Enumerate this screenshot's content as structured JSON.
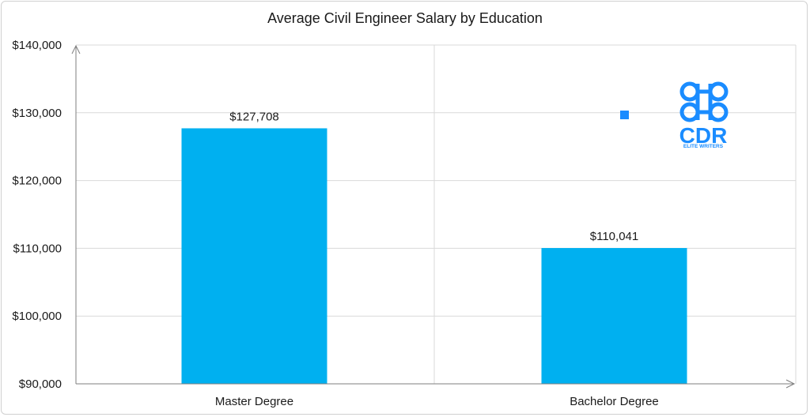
{
  "chart_data": {
    "type": "bar",
    "title": "Average Civil Engineer Salary by Education",
    "categories": [
      "Master Degree",
      "Bachelor Degree"
    ],
    "values": [
      127708,
      110041
    ],
    "data_labels": [
      "$127,708",
      "$110,041"
    ],
    "y_ticks": [
      90000,
      100000,
      110000,
      120000,
      130000,
      140000
    ],
    "y_tick_labels": [
      "$90,000",
      "$100,000",
      "$110,000",
      "$120,000",
      "$130,000",
      "$140,000"
    ],
    "ylim": [
      90000,
      140000
    ],
    "grid": true,
    "xlabel": "",
    "ylabel": ""
  },
  "colors": {
    "bar": "#00b0f0",
    "grid": "#d9d9d9",
    "axis": "#7f7f7f",
    "logo": "#1a8cff"
  },
  "logo": {
    "text_main": "CDR",
    "text_sub": "ELITE WRITERS"
  }
}
